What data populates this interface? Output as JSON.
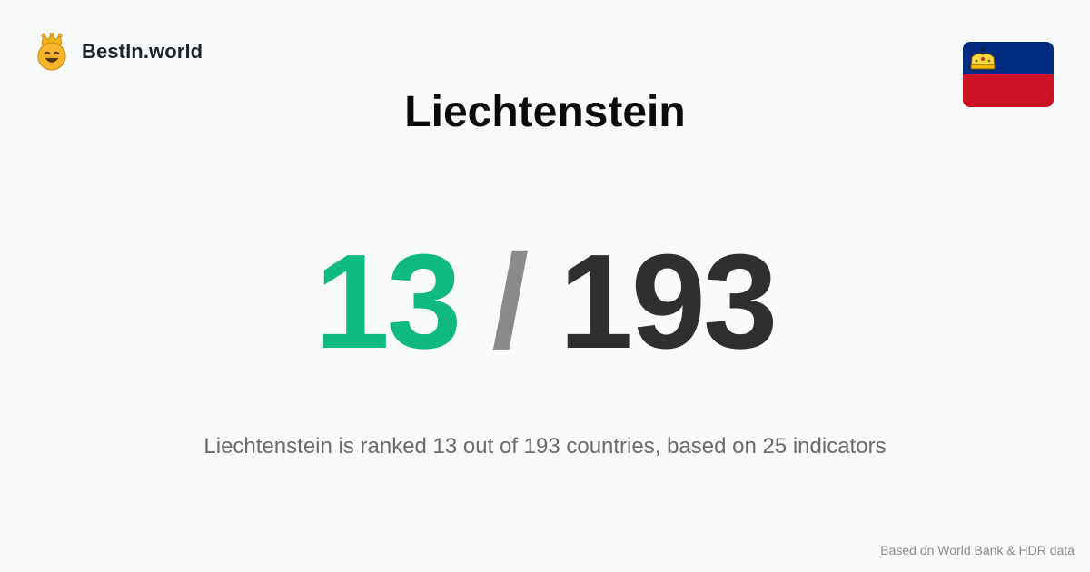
{
  "brand": {
    "name": "BestIn.world",
    "logo_icon": "crowned-smiley-icon"
  },
  "flag": {
    "icon": "liechtenstein-flag-icon",
    "colors": {
      "top": "#002b7f",
      "bottom": "#ce1126",
      "crown": "#ffd83d"
    }
  },
  "title": "Liechtenstein",
  "ranking": {
    "rank": "13",
    "separator": "/",
    "total": "193"
  },
  "summary": "Liechtenstein is ranked 13 out of 193 countries, based on 25 indicators",
  "source": "Based on World Bank & HDR data",
  "colors": {
    "background": "#f9fafb",
    "rank": "#10b981",
    "separator": "#8a8a8a",
    "total": "#2f2f2f"
  }
}
